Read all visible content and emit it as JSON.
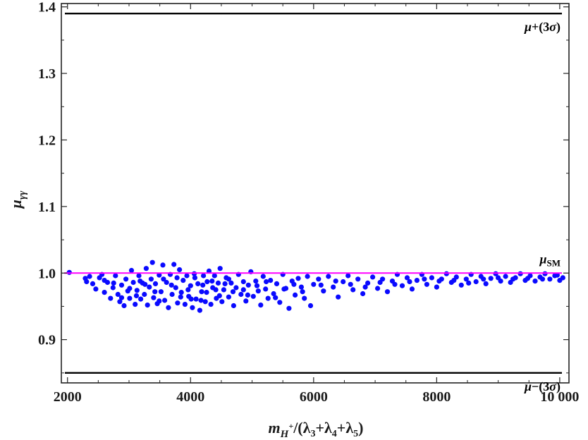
{
  "chart_data": {
    "type": "scatter",
    "title": "",
    "xlabel": "m_{H^+}/(λ3+λ4+λ5)",
    "ylabel": "μγγ",
    "xlim": [
      1900,
      10150
    ],
    "ylim": [
      0.835,
      1.405
    ],
    "x_ticks": [
      2000,
      4000,
      6000,
      8000,
      10000
    ],
    "x_tick_labels": [
      "2000",
      "4000",
      "6000",
      "8000",
      "10 000"
    ],
    "y_ticks": [
      0.9,
      1.0,
      1.1,
      1.2,
      1.3,
      1.4
    ],
    "y_tick_labels": [
      "0.9",
      "1.0",
      "1.1",
      "1.2",
      "1.3",
      "1.4"
    ],
    "grid": false,
    "colors": {
      "points": "#0a0aff",
      "sm_line": "#ff00ff",
      "bound_lines": "#000000",
      "frame": "#222222"
    },
    "reference_lines": [
      {
        "name": "upper",
        "y": 1.39,
        "label": "μ+(3σ)",
        "color": "#000000"
      },
      {
        "name": "lower",
        "y": 0.85,
        "label": "μ−(3σ)",
        "color": "#000000"
      },
      {
        "name": "sm",
        "y": 1.0,
        "label": "μSM",
        "color": "#ff00ff"
      }
    ],
    "series": [
      {
        "points": [
          [
            2030,
            1.001
          ],
          [
            2290,
            0.992
          ],
          [
            2310,
            0.987
          ],
          [
            2360,
            0.995
          ],
          [
            2410,
            0.984
          ],
          [
            2460,
            0.976
          ],
          [
            2520,
            0.993
          ],
          [
            2560,
            0.998
          ],
          [
            2600,
            0.971
          ],
          [
            2650,
            0.986
          ],
          [
            2700,
            0.962
          ],
          [
            2740,
            0.978
          ],
          [
            2780,
            0.996
          ],
          [
            2820,
            0.968
          ],
          [
            2850,
            0.957
          ],
          [
            2880,
            0.982
          ],
          [
            2920,
            0.951
          ],
          [
            2950,
            0.991
          ],
          [
            2980,
            0.973
          ],
          [
            3010,
            0.962
          ],
          [
            3040,
            1.004
          ],
          [
            3070,
            0.986
          ],
          [
            3100,
            0.953
          ],
          [
            3130,
            0.974
          ],
          [
            3160,
            0.996
          ],
          [
            3190,
            0.961
          ],
          [
            3220,
            0.985
          ],
          [
            3250,
            0.968
          ],
          [
            3280,
            1.007
          ],
          [
            3300,
            0.952
          ],
          [
            3330,
            0.979
          ],
          [
            3360,
            0.991
          ],
          [
            3380,
            1.016
          ],
          [
            3400,
            0.963
          ],
          [
            3430,
            0.984
          ],
          [
            3460,
            0.954
          ],
          [
            3490,
            0.997
          ],
          [
            3520,
            0.972
          ],
          [
            3550,
            1.012
          ],
          [
            3580,
            0.959
          ],
          [
            3610,
            0.986
          ],
          [
            3640,
            0.948
          ],
          [
            3670,
            0.998
          ],
          [
            3700,
            0.968
          ],
          [
            3730,
            1.013
          ],
          [
            3760,
            0.978
          ],
          [
            3790,
            0.955
          ],
          [
            3820,
            1.005
          ],
          [
            3850,
            0.971
          ],
          [
            3880,
            0.989
          ],
          [
            3910,
            0.953
          ],
          [
            3940,
            0.996
          ],
          [
            3970,
            0.965
          ],
          [
            4000,
            0.981
          ],
          [
            4030,
            0.948
          ],
          [
            4060,
            0.999
          ],
          [
            4090,
            0.961
          ],
          [
            4120,
            0.984
          ],
          [
            4150,
            0.944
          ],
          [
            4180,
            0.972
          ],
          [
            4210,
            0.996
          ],
          [
            4240,
            0.957
          ],
          [
            4270,
            0.987
          ],
          [
            4300,
            1.003
          ],
          [
            4330,
            0.953
          ],
          [
            4360,
            0.978
          ],
          [
            4390,
            0.996
          ],
          [
            4420,
            0.962
          ],
          [
            4450,
            0.985
          ],
          [
            4480,
            1.007
          ],
          [
            4510,
            0.957
          ],
          [
            4540,
            0.975
          ],
          [
            4580,
            0.993
          ],
          [
            4620,
            0.964
          ],
          [
            4660,
            0.985
          ],
          [
            4700,
            0.951
          ],
          [
            4740,
            0.978
          ],
          [
            4780,
            0.998
          ],
          [
            4820,
            0.968
          ],
          [
            4860,
            0.987
          ],
          [
            4900,
            0.958
          ],
          [
            4940,
            0.982
          ],
          [
            4980,
            1.002
          ],
          [
            5020,
            0.965
          ],
          [
            5060,
            0.988
          ],
          [
            5100,
            0.973
          ],
          [
            5140,
            0.952
          ],
          [
            5180,
            0.995
          ],
          [
            5220,
            0.976
          ],
          [
            5260,
            0.962
          ],
          [
            5300,
            0.989
          ],
          [
            5350,
            0.969
          ],
          [
            5400,
            0.984
          ],
          [
            5450,
            0.956
          ],
          [
            5500,
            0.998
          ],
          [
            5550,
            0.977
          ],
          [
            5600,
            0.947
          ],
          [
            5650,
            0.988
          ],
          [
            5700,
            0.967
          ],
          [
            5750,
            0.992
          ],
          [
            5800,
            0.979
          ],
          [
            5850,
            0.962
          ],
          [
            5900,
            0.995
          ],
          [
            5950,
            0.951
          ],
          [
            6000,
            0.983
          ],
          [
            6080,
            0.991
          ],
          [
            6160,
            0.973
          ],
          [
            6240,
            0.995
          ],
          [
            6320,
            0.979
          ],
          [
            6400,
            0.964
          ],
          [
            6480,
            0.987
          ],
          [
            6560,
            0.996
          ],
          [
            6640,
            0.975
          ],
          [
            6720,
            0.991
          ],
          [
            6800,
            0.969
          ],
          [
            6880,
            0.985
          ],
          [
            6960,
            0.994
          ],
          [
            7040,
            0.977
          ],
          [
            7120,
            0.991
          ],
          [
            7200,
            0.972
          ],
          [
            7280,
            0.988
          ],
          [
            7360,
            0.998
          ],
          [
            7440,
            0.981
          ],
          [
            7520,
            0.993
          ],
          [
            7600,
            0.976
          ],
          [
            7680,
            0.989
          ],
          [
            7760,
            0.998
          ],
          [
            7840,
            0.983
          ],
          [
            7920,
            0.993
          ],
          [
            8000,
            0.979
          ],
          [
            8080,
            0.991
          ],
          [
            8160,
            0.999
          ],
          [
            8240,
            0.986
          ],
          [
            8320,
            0.994
          ],
          [
            8400,
            0.982
          ],
          [
            8480,
            0.991
          ],
          [
            8560,
            0.998
          ],
          [
            8640,
            0.987
          ],
          [
            8720,
            0.995
          ],
          [
            8800,
            0.984
          ],
          [
            8880,
            0.992
          ],
          [
            8960,
            0.999
          ],
          [
            9040,
            0.988
          ],
          [
            9120,
            0.995
          ],
          [
            9200,
            0.986
          ],
          [
            9280,
            0.993
          ],
          [
            9360,
            0.999
          ],
          [
            9440,
            0.989
          ],
          [
            9520,
            0.996
          ],
          [
            9600,
            0.988
          ],
          [
            9680,
            0.994
          ],
          [
            9760,
            0.999
          ],
          [
            9840,
            0.991
          ],
          [
            9920,
            0.996
          ],
          [
            10000,
            0.989
          ],
          [
            10050,
            0.993
          ],
          [
            2600,
            0.989
          ],
          [
            2750,
            0.985
          ],
          [
            3010,
            0.977
          ],
          [
            3120,
            0.966
          ],
          [
            3260,
            0.983
          ],
          [
            3420,
            0.972
          ],
          [
            3560,
            0.991
          ],
          [
            3690,
            0.982
          ],
          [
            3840,
            0.964
          ],
          [
            3960,
            0.975
          ],
          [
            4070,
            0.993
          ],
          [
            4170,
            0.959
          ],
          [
            4260,
            0.971
          ],
          [
            4350,
            0.988
          ],
          [
            4470,
            0.966
          ],
          [
            4560,
            0.984
          ],
          [
            4690,
            0.972
          ],
          [
            4860,
            0.975
          ],
          [
            4930,
            0.967
          ],
          [
            5080,
            0.981
          ],
          [
            5230,
            0.987
          ],
          [
            5380,
            0.963
          ],
          [
            5520,
            0.976
          ],
          [
            5680,
            0.983
          ],
          [
            5820,
            0.972
          ],
          [
            6120,
            0.982
          ],
          [
            6360,
            0.988
          ],
          [
            6600,
            0.983
          ],
          [
            6840,
            0.979
          ],
          [
            7080,
            0.986
          ],
          [
            7320,
            0.983
          ],
          [
            7560,
            0.987
          ],
          [
            7800,
            0.991
          ],
          [
            8040,
            0.988
          ],
          [
            8280,
            0.989
          ],
          [
            8520,
            0.985
          ],
          [
            8760,
            0.991
          ],
          [
            9000,
            0.993
          ],
          [
            9240,
            0.991
          ],
          [
            9480,
            0.992
          ],
          [
            9720,
            0.991
          ],
          [
            9960,
            0.997
          ],
          [
            2880,
            0.963
          ],
          [
            3180,
            0.988
          ],
          [
            3490,
            0.958
          ],
          [
            3780,
            0.993
          ],
          [
            4010,
            0.961
          ],
          [
            4200,
            0.982
          ],
          [
            4410,
            0.975
          ],
          [
            4620,
            0.991
          ]
        ]
      }
    ]
  }
}
